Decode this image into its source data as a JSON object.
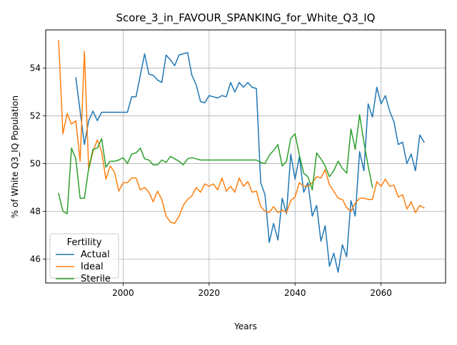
{
  "chart_data": {
    "type": "line",
    "title": "Score_3_in_FAVOUR_SPANKING_for_White_Q3_IQ",
    "xlabel": "Years",
    "ylabel": "% of White Q3_IQ Population",
    "xlim": [
      1982,
      2075
    ],
    "ylim": [
      45.0,
      55.6
    ],
    "x_ticks": [
      2000,
      2020,
      2040,
      2060
    ],
    "y_ticks": [
      46,
      48,
      50,
      52,
      54
    ],
    "grid": true,
    "legend": {
      "title": "Fertility",
      "placement": "lower-left"
    },
    "series": [
      {
        "name": "Actual",
        "color": "#1f77b4",
        "points": [
          [
            1989,
            53.6
          ],
          [
            1991,
            50.8
          ],
          [
            1992,
            51.8
          ],
          [
            1993,
            52.2
          ],
          [
            1994,
            51.8
          ],
          [
            1995,
            52.15
          ],
          [
            1997,
            52.15
          ],
          [
            2001,
            52.15
          ],
          [
            2002,
            52.8
          ],
          [
            2003,
            52.8
          ],
          [
            2005,
            54.6
          ],
          [
            2006,
            53.75
          ],
          [
            2007,
            53.7
          ],
          [
            2008,
            53.5
          ],
          [
            2009,
            53.4
          ],
          [
            2010,
            54.55
          ],
          [
            2011,
            54.35
          ],
          [
            2012,
            54.1
          ],
          [
            2013,
            54.55
          ],
          [
            2014,
            54.6
          ],
          [
            2015,
            54.65
          ],
          [
            2016,
            53.7
          ],
          [
            2017,
            53.3
          ],
          [
            2018,
            52.6
          ],
          [
            2019,
            52.55
          ],
          [
            2020,
            52.85
          ],
          [
            2021,
            52.8
          ],
          [
            2022,
            52.75
          ],
          [
            2023,
            52.85
          ],
          [
            2024,
            52.8
          ],
          [
            2025,
            53.4
          ],
          [
            2026,
            53.0
          ],
          [
            2027,
            53.4
          ],
          [
            2028,
            53.2
          ],
          [
            2029,
            53.4
          ],
          [
            2030,
            53.2
          ],
          [
            2031,
            53.15
          ],
          [
            2032,
            49.2
          ],
          [
            2033,
            48.7
          ],
          [
            2034,
            46.7
          ],
          [
            2035,
            47.5
          ],
          [
            2036,
            46.8
          ],
          [
            2037,
            48.55
          ],
          [
            2038,
            47.9
          ],
          [
            2039,
            50.4
          ],
          [
            2040,
            49.35
          ],
          [
            2041,
            50.3
          ],
          [
            2042,
            48.8
          ],
          [
            2043,
            49.2
          ],
          [
            2044,
            47.8
          ],
          [
            2045,
            48.25
          ],
          [
            2046,
            46.75
          ],
          [
            2047,
            47.4
          ],
          [
            2048,
            45.7
          ],
          [
            2049,
            46.25
          ],
          [
            2050,
            45.45
          ],
          [
            2051,
            46.6
          ],
          [
            2052,
            46.1
          ],
          [
            2053,
            48.45
          ],
          [
            2054,
            47.8
          ],
          [
            2055,
            50.5
          ],
          [
            2056,
            49.7
          ],
          [
            2057,
            52.5
          ],
          [
            2058,
            51.95
          ],
          [
            2059,
            53.2
          ],
          [
            2060,
            52.5
          ],
          [
            2061,
            52.85
          ],
          [
            2062,
            52.2
          ],
          [
            2063,
            51.75
          ],
          [
            2064,
            50.8
          ],
          [
            2065,
            50.9
          ],
          [
            2066,
            50.0
          ],
          [
            2067,
            50.4
          ],
          [
            2068,
            49.7
          ],
          [
            2069,
            51.2
          ],
          [
            2070,
            50.9
          ]
        ]
      },
      {
        "name": "Ideal",
        "color": "#ff7f0e",
        "points": [
          [
            1985,
            55.15
          ],
          [
            1986,
            51.25
          ],
          [
            1987,
            52.1
          ],
          [
            1988,
            51.65
          ],
          [
            1989,
            51.8
          ],
          [
            1990,
            50.1
          ],
          [
            1991,
            54.7
          ],
          [
            1992,
            49.75
          ],
          [
            1993,
            50.5
          ],
          [
            1994,
            51.0
          ],
          [
            1995,
            50.5
          ],
          [
            1996,
            49.35
          ],
          [
            1997,
            49.9
          ],
          [
            1998,
            49.65
          ],
          [
            1999,
            48.85
          ],
          [
            2000,
            49.2
          ],
          [
            2001,
            49.2
          ],
          [
            2002,
            49.4
          ],
          [
            2003,
            49.4
          ],
          [
            2004,
            48.9
          ],
          [
            2005,
            49.0
          ],
          [
            2006,
            48.8
          ],
          [
            2007,
            48.4
          ],
          [
            2008,
            48.85
          ],
          [
            2009,
            48.5
          ],
          [
            2010,
            47.8
          ],
          [
            2011,
            47.55
          ],
          [
            2012,
            47.5
          ],
          [
            2013,
            47.8
          ],
          [
            2014,
            48.25
          ],
          [
            2015,
            48.5
          ],
          [
            2016,
            48.65
          ],
          [
            2017,
            49.0
          ],
          [
            2018,
            48.8
          ],
          [
            2019,
            49.15
          ],
          [
            2020,
            49.05
          ],
          [
            2021,
            49.15
          ],
          [
            2022,
            48.9
          ],
          [
            2023,
            49.4
          ],
          [
            2024,
            48.85
          ],
          [
            2025,
            49.05
          ],
          [
            2026,
            48.8
          ],
          [
            2027,
            49.4
          ],
          [
            2028,
            49.05
          ],
          [
            2029,
            49.25
          ],
          [
            2030,
            48.8
          ],
          [
            2031,
            48.85
          ],
          [
            2032,
            48.2
          ],
          [
            2033,
            48.0
          ],
          [
            2034,
            47.95
          ],
          [
            2035,
            48.2
          ],
          [
            2036,
            47.95
          ],
          [
            2037,
            48.05
          ],
          [
            2038,
            47.95
          ],
          [
            2039,
            48.45
          ],
          [
            2040,
            48.6
          ],
          [
            2041,
            49.2
          ],
          [
            2042,
            49.05
          ],
          [
            2043,
            49.05
          ],
          [
            2044,
            49.2
          ],
          [
            2045,
            49.45
          ],
          [
            2046,
            49.4
          ],
          [
            2047,
            49.75
          ],
          [
            2048,
            49.1
          ],
          [
            2049,
            48.85
          ],
          [
            2050,
            48.55
          ],
          [
            2051,
            48.5
          ],
          [
            2052,
            48.15
          ],
          [
            2053,
            48.0
          ],
          [
            2054,
            48.35
          ],
          [
            2055,
            48.55
          ],
          [
            2056,
            48.55
          ],
          [
            2057,
            48.5
          ],
          [
            2058,
            48.5
          ],
          [
            2059,
            49.25
          ],
          [
            2060,
            49.05
          ],
          [
            2061,
            49.35
          ],
          [
            2062,
            49.05
          ],
          [
            2063,
            49.1
          ],
          [
            2064,
            48.6
          ],
          [
            2065,
            48.7
          ],
          [
            2066,
            48.1
          ],
          [
            2067,
            48.4
          ],
          [
            2068,
            47.95
          ],
          [
            2069,
            48.25
          ],
          [
            2070,
            48.15
          ]
        ]
      },
      {
        "name": "Sterile",
        "color": "#2ca02c",
        "points": [
          [
            1985,
            48.75
          ],
          [
            1986,
            48.0
          ],
          [
            1987,
            47.9
          ],
          [
            1988,
            50.65
          ],
          [
            1989,
            50.2
          ],
          [
            1990,
            48.55
          ],
          [
            1991,
            48.55
          ],
          [
            1992,
            49.8
          ],
          [
            1993,
            50.6
          ],
          [
            1994,
            50.65
          ],
          [
            1995,
            51.05
          ],
          [
            1996,
            49.85
          ],
          [
            1997,
            50.1
          ],
          [
            1998,
            50.1
          ],
          [
            1999,
            50.15
          ],
          [
            2000,
            50.25
          ],
          [
            2001,
            50.0
          ],
          [
            2002,
            50.4
          ],
          [
            2003,
            50.45
          ],
          [
            2004,
            50.65
          ],
          [
            2005,
            50.2
          ],
          [
            2006,
            50.15
          ],
          [
            2007,
            49.95
          ],
          [
            2008,
            49.95
          ],
          [
            2009,
            50.15
          ],
          [
            2010,
            50.05
          ],
          [
            2011,
            50.3
          ],
          [
            2012,
            50.2
          ],
          [
            2013,
            50.1
          ],
          [
            2014,
            49.95
          ],
          [
            2015,
            50.2
          ],
          [
            2016,
            50.25
          ],
          [
            2017,
            50.2
          ],
          [
            2018,
            50.15
          ],
          [
            2020,
            50.15
          ],
          [
            2025,
            50.15
          ],
          [
            2031,
            50.15
          ],
          [
            2032,
            50.05
          ],
          [
            2033,
            50.0
          ],
          [
            2034,
            50.35
          ],
          [
            2035,
            50.55
          ],
          [
            2036,
            50.8
          ],
          [
            2037,
            49.9
          ],
          [
            2038,
            50.1
          ],
          [
            2039,
            51.05
          ],
          [
            2040,
            51.25
          ],
          [
            2041,
            50.35
          ],
          [
            2042,
            49.6
          ],
          [
            2043,
            49.45
          ],
          [
            2044,
            48.9
          ],
          [
            2045,
            50.45
          ],
          [
            2046,
            50.2
          ],
          [
            2047,
            49.9
          ],
          [
            2048,
            49.45
          ],
          [
            2049,
            49.7
          ],
          [
            2050,
            50.1
          ],
          [
            2051,
            49.8
          ],
          [
            2052,
            49.6
          ],
          [
            2053,
            51.45
          ],
          [
            2054,
            50.6
          ],
          [
            2055,
            52.05
          ],
          [
            2056,
            50.9
          ],
          [
            2057,
            49.9
          ],
          [
            2058,
            49.0
          ]
        ]
      }
    ]
  }
}
